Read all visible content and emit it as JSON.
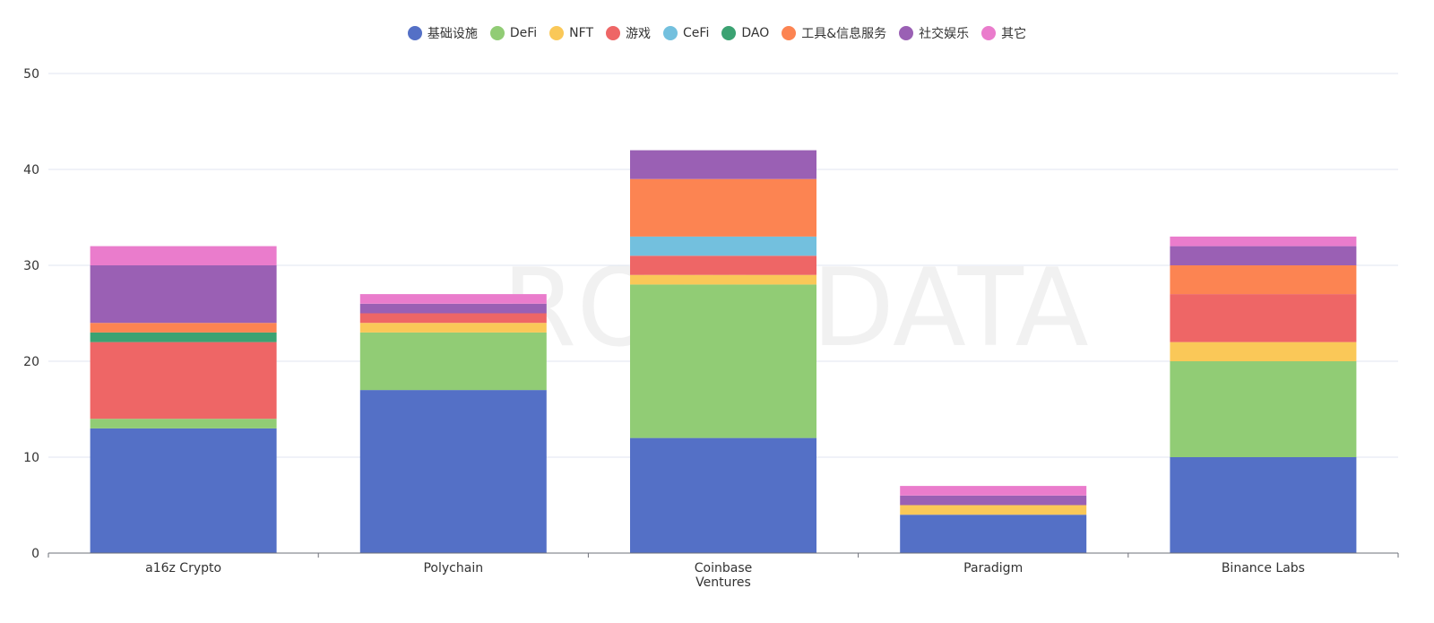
{
  "chart_data": {
    "type": "bar",
    "stacked": true,
    "title": "",
    "xlabel": "",
    "ylabel": "",
    "ylim": [
      0,
      50
    ],
    "yticks": [
      0,
      10,
      20,
      30,
      40,
      50
    ],
    "grid": true,
    "legend_position": "top-center",
    "categories": [
      "a16z Crypto",
      "Polychain",
      "Coinbase\nVentures",
      "Paradigm",
      "Binance Labs"
    ],
    "series": [
      {
        "name": "基础设施",
        "color": "#5470c6",
        "values": [
          13,
          17,
          12,
          4,
          10
        ]
      },
      {
        "name": "DeFi",
        "color": "#91cc75",
        "values": [
          1,
          6,
          16,
          0,
          10
        ]
      },
      {
        "name": "NFT",
        "color": "#fac858",
        "values": [
          0,
          1,
          1,
          1,
          2
        ]
      },
      {
        "name": "游戏",
        "color": "#ee6666",
        "values": [
          8,
          1,
          2,
          0,
          5
        ]
      },
      {
        "name": "CeFi",
        "color": "#73c0de",
        "values": [
          0,
          0,
          2,
          0,
          0
        ]
      },
      {
        "name": "DAO",
        "color": "#3ba272",
        "values": [
          1,
          0,
          0,
          0,
          0
        ]
      },
      {
        "name": "工具&信息服务",
        "color": "#fc8452",
        "values": [
          1,
          0,
          6,
          0,
          3
        ]
      },
      {
        "name": "社交娱乐",
        "color": "#9a60b4",
        "values": [
          6,
          1,
          3,
          1,
          2
        ]
      },
      {
        "name": "其它",
        "color": "#ea7ccc",
        "values": [
          2,
          1,
          0,
          1,
          1
        ]
      }
    ],
    "watermark": "ROOTDATA"
  }
}
